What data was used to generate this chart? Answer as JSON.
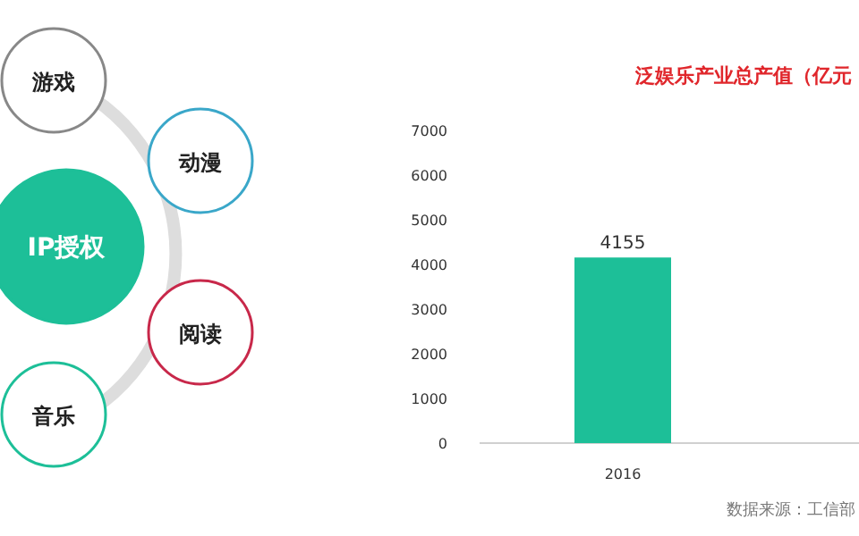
{
  "chart_data": [
    {
      "type": "other",
      "annotations": [
        "游戏",
        "动漫",
        "IP授权",
        "阅读",
        "音乐"
      ]
    },
    {
      "type": "bar",
      "title": "泛娱乐产业总产值（亿元",
      "categories": [
        "2016"
      ],
      "values": [
        4155
      ],
      "color": "#1dbf98",
      "ylim": [
        0,
        7000
      ],
      "yticks": [
        0,
        1000,
        2000,
        3000,
        4000,
        5000,
        6000,
        7000
      ],
      "data_labels": true,
      "grid": false,
      "annotations": [
        "数据来源：工信部"
      ]
    }
  ]
}
